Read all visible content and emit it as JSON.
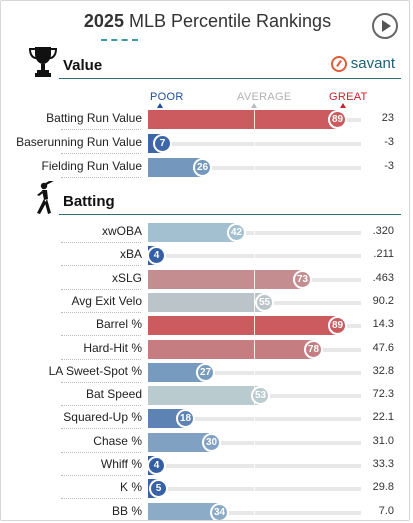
{
  "header": {
    "title_bold": "2025",
    "title_rest": "MLB Percentile Rankings",
    "play_icon": "play-icon"
  },
  "scale": {
    "poor": "POOR",
    "average": "AVERAGE",
    "great": "GREAT"
  },
  "colors": {
    "great": "#d0393b",
    "poor": "#2a55a0",
    "neutral": "#b9d4d9",
    "accent": "#2d6e78"
  },
  "sections": {
    "value": {
      "title": "Value",
      "icon": "trophy-icon",
      "brand": "savant"
    },
    "batting": {
      "title": "Batting",
      "icon": "batter-icon"
    }
  },
  "chart_data": {
    "type": "bar",
    "title": "2025 MLB Percentile Rankings",
    "xlim": [
      0,
      100
    ],
    "groups": [
      {
        "name": "Value",
        "rows": [
          {
            "label": "Batting Run Value",
            "percentile": 89,
            "value": "23"
          },
          {
            "label": "Baserunning Run Value",
            "percentile": 7,
            "value": "-3"
          },
          {
            "label": "Fielding Run Value",
            "percentile": 26,
            "value": "-3"
          }
        ]
      },
      {
        "name": "Batting",
        "rows": [
          {
            "label": "xwOBA",
            "percentile": 42,
            "value": ".320"
          },
          {
            "label": "xBA",
            "percentile": 4,
            "value": ".211"
          },
          {
            "label": "xSLG",
            "percentile": 73,
            "value": ".463"
          },
          {
            "label": "Avg Exit Velo",
            "percentile": 55,
            "value": "90.2"
          },
          {
            "label": "Barrel %",
            "percentile": 89,
            "value": "14.3"
          },
          {
            "label": "Hard-Hit %",
            "percentile": 78,
            "value": "47.6"
          },
          {
            "label": "LA Sweet-Spot %",
            "percentile": 27,
            "value": "32.8"
          },
          {
            "label": "Bat Speed",
            "percentile": 53,
            "value": "72.3"
          },
          {
            "label": "Squared-Up %",
            "percentile": 18,
            "value": "22.1"
          },
          {
            "label": "Chase %",
            "percentile": 30,
            "value": "31.0"
          },
          {
            "label": "Whiff %",
            "percentile": 4,
            "value": "33.3"
          },
          {
            "label": "K %",
            "percentile": 5,
            "value": "29.8"
          },
          {
            "label": "BB %",
            "percentile": 34,
            "value": "7.0"
          }
        ]
      }
    ]
  }
}
